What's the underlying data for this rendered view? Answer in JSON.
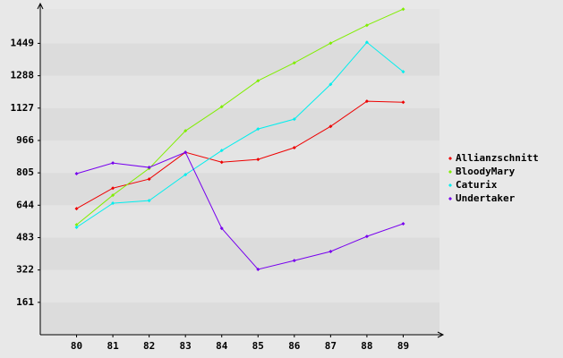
{
  "chart_data": {
    "type": "line",
    "categories": [
      "80",
      "81",
      "82",
      "83",
      "84",
      "85",
      "86",
      "87",
      "88",
      "89"
    ],
    "series": [
      {
        "name": "Allianzschnitt",
        "color": "#ee0000",
        "values": [
          627,
          729,
          774,
          907,
          858,
          872,
          930,
          1036,
          1161,
          1156
        ]
      },
      {
        "name": "BloodyMary",
        "color": "#80ee00",
        "values": [
          547,
          694,
          827,
          1014,
          1134,
          1263,
          1352,
          1450,
          1539,
          1619
        ]
      },
      {
        "name": "Caturix",
        "color": "#00eeee",
        "values": [
          534,
          654,
          667,
          796,
          916,
          1023,
          1072,
          1245,
          1454,
          1308
        ]
      },
      {
        "name": "Undertaker",
        "color": "#7700ee",
        "values": [
          801,
          854,
          832,
          907,
          529,
          325,
          369,
          414,
          489,
          552
        ]
      }
    ],
    "ylim": [
      0,
      1620
    ],
    "yticks": [
      161,
      322,
      483,
      644,
      805,
      966,
      1127,
      1288,
      1449
    ],
    "grid": true,
    "legend": "right"
  }
}
